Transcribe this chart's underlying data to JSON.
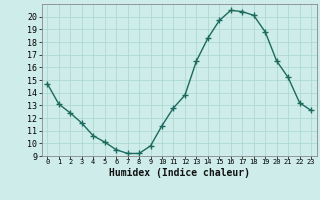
{
  "xlabel": "Humidex (Indice chaleur)",
  "x": [
    0,
    1,
    2,
    3,
    4,
    5,
    6,
    7,
    8,
    9,
    10,
    11,
    12,
    13,
    14,
    15,
    16,
    17,
    18,
    19,
    20,
    21,
    22,
    23
  ],
  "y": [
    14.7,
    13.1,
    12.4,
    11.6,
    10.6,
    10.1,
    9.5,
    9.2,
    9.2,
    9.8,
    11.4,
    12.8,
    13.8,
    16.5,
    18.3,
    19.7,
    20.5,
    20.4,
    20.1,
    18.8,
    16.5,
    15.2,
    13.2,
    12.6
  ],
  "line_color": "#1a6b5e",
  "marker": "+",
  "bg_color": "#ceecea",
  "grid_color": "#aed8d4",
  "xlim": [
    -0.5,
    23.5
  ],
  "ylim": [
    9,
    21
  ],
  "xticks": [
    0,
    1,
    2,
    3,
    4,
    5,
    6,
    7,
    8,
    9,
    10,
    11,
    12,
    13,
    14,
    15,
    16,
    17,
    18,
    19,
    20,
    21,
    22,
    23
  ],
  "yticks": [
    9,
    10,
    11,
    12,
    13,
    14,
    15,
    16,
    17,
    18,
    19,
    20
  ],
  "tick_label_size": 6,
  "xlabel_size": 7,
  "line_width": 1.0,
  "marker_size": 4
}
